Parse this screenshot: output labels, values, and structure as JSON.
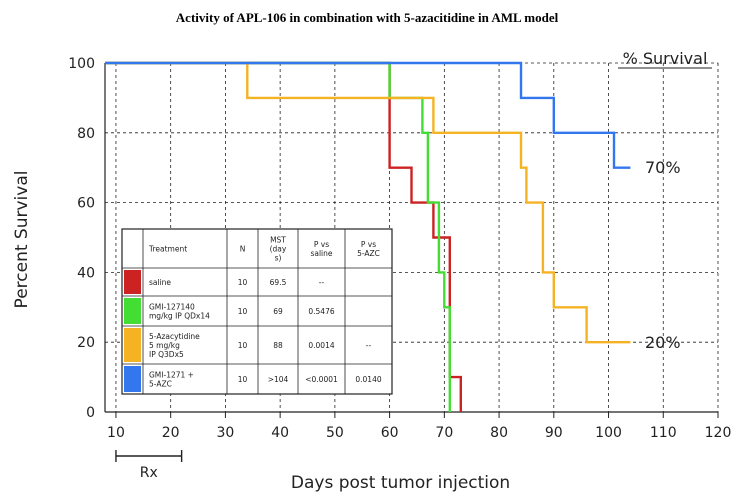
{
  "chart_data": {
    "type": "line",
    "step": true,
    "title": "Activity of APL-106 in combination with 5-azacitidine in AML model",
    "xlabel": "Days post tumor injection",
    "ylabel": "Percent Survival",
    "xlim": [
      8,
      120
    ],
    "ylim": [
      0,
      100
    ],
    "xticks": [
      10,
      20,
      30,
      40,
      50,
      60,
      70,
      80,
      90,
      100,
      110,
      120
    ],
    "yticks": [
      0,
      20,
      40,
      60,
      80,
      100
    ],
    "series": [
      {
        "color": "#cc2222",
        "points": [
          [
            8,
            100
          ],
          [
            60,
            100
          ],
          [
            60,
            70
          ],
          [
            64,
            70
          ],
          [
            64,
            60
          ],
          [
            68,
            60
          ],
          [
            68,
            50
          ],
          [
            71,
            50
          ],
          [
            71,
            10
          ],
          [
            73,
            10
          ],
          [
            73,
            0
          ]
        ]
      },
      {
        "color": "#44dd33",
        "points": [
          [
            8,
            100
          ],
          [
            60,
            100
          ],
          [
            60,
            90
          ],
          [
            66,
            90
          ],
          [
            66,
            80
          ],
          [
            67,
            80
          ],
          [
            67,
            60
          ],
          [
            69,
            60
          ],
          [
            69,
            40
          ],
          [
            70,
            40
          ],
          [
            70,
            30
          ],
          [
            71,
            30
          ],
          [
            71,
            0
          ]
        ]
      },
      {
        "color": "#f5b324",
        "points": [
          [
            8,
            100
          ],
          [
            34,
            100
          ],
          [
            34,
            90
          ],
          [
            68,
            90
          ],
          [
            68,
            80
          ],
          [
            84,
            80
          ],
          [
            84,
            70
          ],
          [
            85,
            70
          ],
          [
            85,
            60
          ],
          [
            88,
            60
          ],
          [
            88,
            40
          ],
          [
            90,
            40
          ],
          [
            90,
            30
          ],
          [
            96,
            30
          ],
          [
            96,
            20
          ],
          [
            104,
            20
          ]
        ]
      },
      {
        "color": "#3377ee",
        "points": [
          [
            8,
            100
          ],
          [
            84,
            100
          ],
          [
            84,
            90
          ],
          [
            90,
            90
          ],
          [
            90,
            80
          ],
          [
            101,
            80
          ],
          [
            101,
            70
          ],
          [
            104,
            70
          ]
        ]
      }
    ],
    "annotations": {
      "survival_header": "% Survival",
      "label_70": "70%",
      "label_20": "20%",
      "rx_label": "Rx",
      "rx_range": [
        10,
        22
      ]
    },
    "table": {
      "headers": [
        "Treatment",
        "N",
        "MST (days)",
        "P vs saline",
        "P vs 5-AZC"
      ],
      "header_lines": [
        [
          "Treatment"
        ],
        [
          "N"
        ],
        [
          "MST",
          "(day",
          "s)"
        ],
        [
          "P vs",
          "saline"
        ],
        [
          "P vs",
          "5-AZC"
        ]
      ],
      "rows": [
        {
          "color": "#cc2222",
          "treatment": [
            "saline"
          ],
          "n": "10",
          "mst": "69.5",
          "p_saline": "--",
          "p_azc": ""
        },
        {
          "color": "#44dd33",
          "treatment": [
            "GMI-127140",
            "mg/kg IP QDx14"
          ],
          "n": "10",
          "mst": "69",
          "p_saline": "0.5476",
          "p_azc": ""
        },
        {
          "color": "#f5b324",
          "treatment": [
            "5-Azacytidine",
            "5 mg/kg",
            "IP Q3Dx5"
          ],
          "n": "10",
          "mst": "88",
          "p_saline": "0.0014",
          "p_azc": "--"
        },
        {
          "color": "#3377ee",
          "treatment": [
            "GMI-1271 +",
            "5-AZC"
          ],
          "n": "10",
          "mst": ">104",
          "p_saline": "<0.0001",
          "p_azc": "0.0140"
        }
      ]
    }
  }
}
